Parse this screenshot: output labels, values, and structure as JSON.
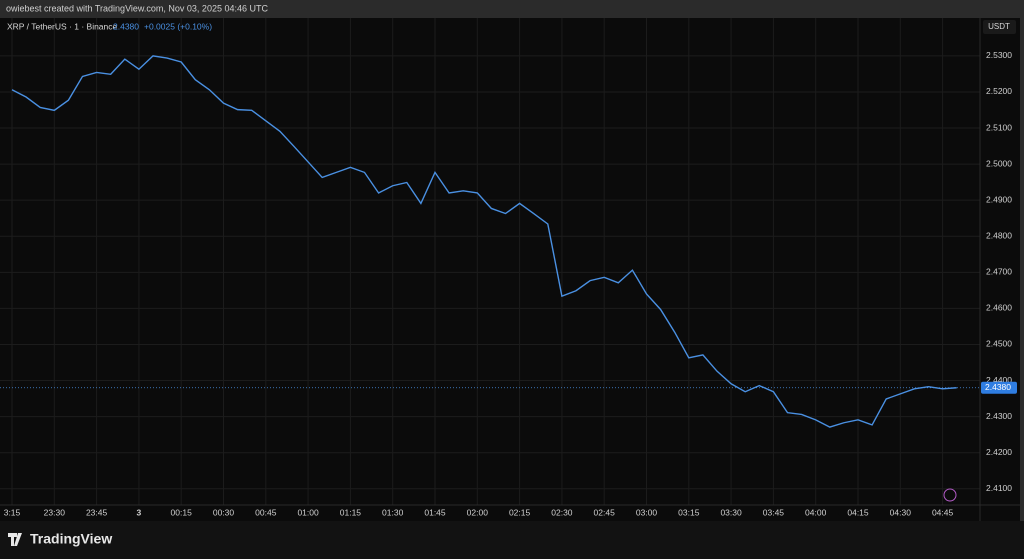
{
  "header": {
    "credit": "owiebest created with TradingView.com, Nov 03, 2025 04:46 UTC"
  },
  "footer": {
    "brand": "TradingView"
  },
  "chart_data": {
    "type": "line",
    "symbol": "XRP / TetherUS · 1 · Binance",
    "change": "+0.0025 (+0.10%)",
    "currency": "USDT",
    "last_price": {
      "value": 2.438,
      "label": "2.4380"
    },
    "categories": [
      "3:15",
      null,
      null,
      "23:30",
      null,
      null,
      "23:45",
      null,
      null,
      "3",
      null,
      null,
      "00:15",
      null,
      null,
      "00:30",
      null,
      null,
      "00:45",
      null,
      null,
      "01:00",
      null,
      null,
      "01:15",
      null,
      null,
      "01:30",
      null,
      null,
      "01:45",
      null,
      null,
      "02:00",
      null,
      null,
      "02:15",
      null,
      null,
      "02:30",
      null,
      null,
      "02:45",
      null,
      null,
      "03:00",
      null,
      null,
      "03:15",
      null,
      null,
      "03:30",
      null,
      null,
      "03:45",
      null,
      null,
      "04:00",
      null,
      null,
      "04:15",
      null,
      null,
      "04:30",
      null,
      null,
      "04:45",
      null
    ],
    "series": [
      {
        "name": "XRP / TetherUS",
        "color": "#4a90e2",
        "values": [
          2.5206,
          2.5186,
          2.5157,
          2.5149,
          2.5177,
          2.5243,
          2.5254,
          2.5249,
          2.5291,
          2.5263,
          2.53,
          2.5294,
          2.5283,
          2.5234,
          2.5206,
          2.5169,
          2.5151,
          2.5149,
          2.512,
          2.5091,
          2.5049,
          2.5006,
          2.4963,
          2.4977,
          2.4991,
          2.4977,
          2.492,
          2.494,
          2.4949,
          2.4891,
          2.4977,
          2.492,
          2.4926,
          2.492,
          2.4877,
          2.4863,
          2.4891,
          2.4863,
          2.4834,
          2.4634,
          2.4649,
          2.4677,
          2.4686,
          2.4671,
          2.4706,
          2.464,
          2.4597,
          2.4534,
          2.4463,
          2.4471,
          2.4426,
          2.4391,
          2.4369,
          2.4386,
          2.4369,
          2.4311,
          2.4306,
          2.4291,
          2.4271,
          2.4283,
          2.4291,
          2.4277,
          2.4349,
          2.4363,
          2.4377,
          2.4383,
          2.4377,
          2.438
        ]
      }
    ],
    "ylim": [
      2.4055,
      2.5405
    ],
    "yticks": [
      {
        "value": 2.41,
        "label": "2.4100"
      },
      {
        "value": 2.42,
        "label": "2.4200"
      },
      {
        "value": 2.43,
        "label": "2.4300"
      },
      {
        "value": 2.44,
        "label": "2.4400"
      },
      {
        "value": 2.45,
        "label": "2.4500"
      },
      {
        "value": 2.46,
        "label": "2.4600"
      },
      {
        "value": 2.47,
        "label": "2.4700"
      },
      {
        "value": 2.48,
        "label": "2.4800"
      },
      {
        "value": 2.49,
        "label": "2.4900"
      },
      {
        "value": 2.5,
        "label": "2.5000"
      },
      {
        "value": 2.51,
        "label": "2.5100"
      },
      {
        "value": 2.52,
        "label": "2.5200"
      },
      {
        "value": 2.53,
        "label": "2.5300"
      }
    ],
    "grid": true
  }
}
